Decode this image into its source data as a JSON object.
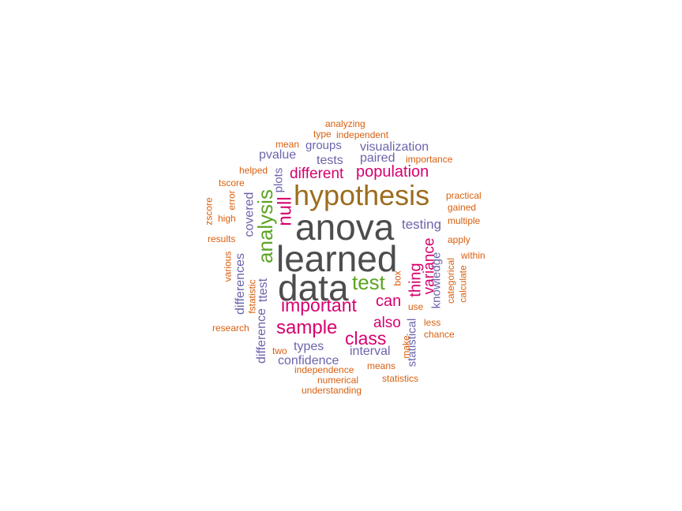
{
  "colors": {
    "dark_gray": "#4d4d4d",
    "brown": "#9c6d1f",
    "green": "#5ba423",
    "magenta": "#d7006f",
    "purple": "#6b64ab",
    "orange": "#d95f0e"
  },
  "words": {
    "anova": "anova",
    "learned": "learned",
    "data": "data",
    "hypothesis": "hypothesis",
    "analysis": "analysis",
    "test": "test",
    "null": "null",
    "sample": "sample",
    "important": "important",
    "class": "class",
    "population": "population",
    "different": "different",
    "variance": "variance",
    "thing": "thing",
    "can": "can",
    "also": "also",
    "testing": "testing",
    "visualization": "visualization",
    "groups": "groups",
    "pvalue": "pvalue",
    "tests": "tests",
    "paired": "paired",
    "plots": "plots",
    "covered": "covered",
    "differences": "differences",
    "ttest": "ttest",
    "difference": "difference",
    "types": "types",
    "confidence": "confidence",
    "interval": "interval",
    "knowledge": "knowledge",
    "statistical": "statistical",
    "analyzing": "analyzing",
    "type": "type",
    "independent": "independent",
    "mean": "mean",
    "importance": "importance",
    "helped": "helped",
    "tscore": "tscore",
    "error": "error",
    "high": "high",
    "zscore": "zscore",
    "results": "results",
    "various": "various",
    "fstatistic": "fstatistic",
    "research": "research",
    "two": "two",
    "independence": "independence",
    "numerical": "numerical",
    "understanding": "understanding",
    "means": "means",
    "statistics": "statistics",
    "make": "make",
    "chance": "chance",
    "less": "less",
    "use": "use",
    "box": "box",
    "categorical": "categorical",
    "calculate": "calculate",
    "within": "within",
    "apply": "apply",
    "multiple": "multiple",
    "gained": "gained",
    "practical": "practical"
  }
}
